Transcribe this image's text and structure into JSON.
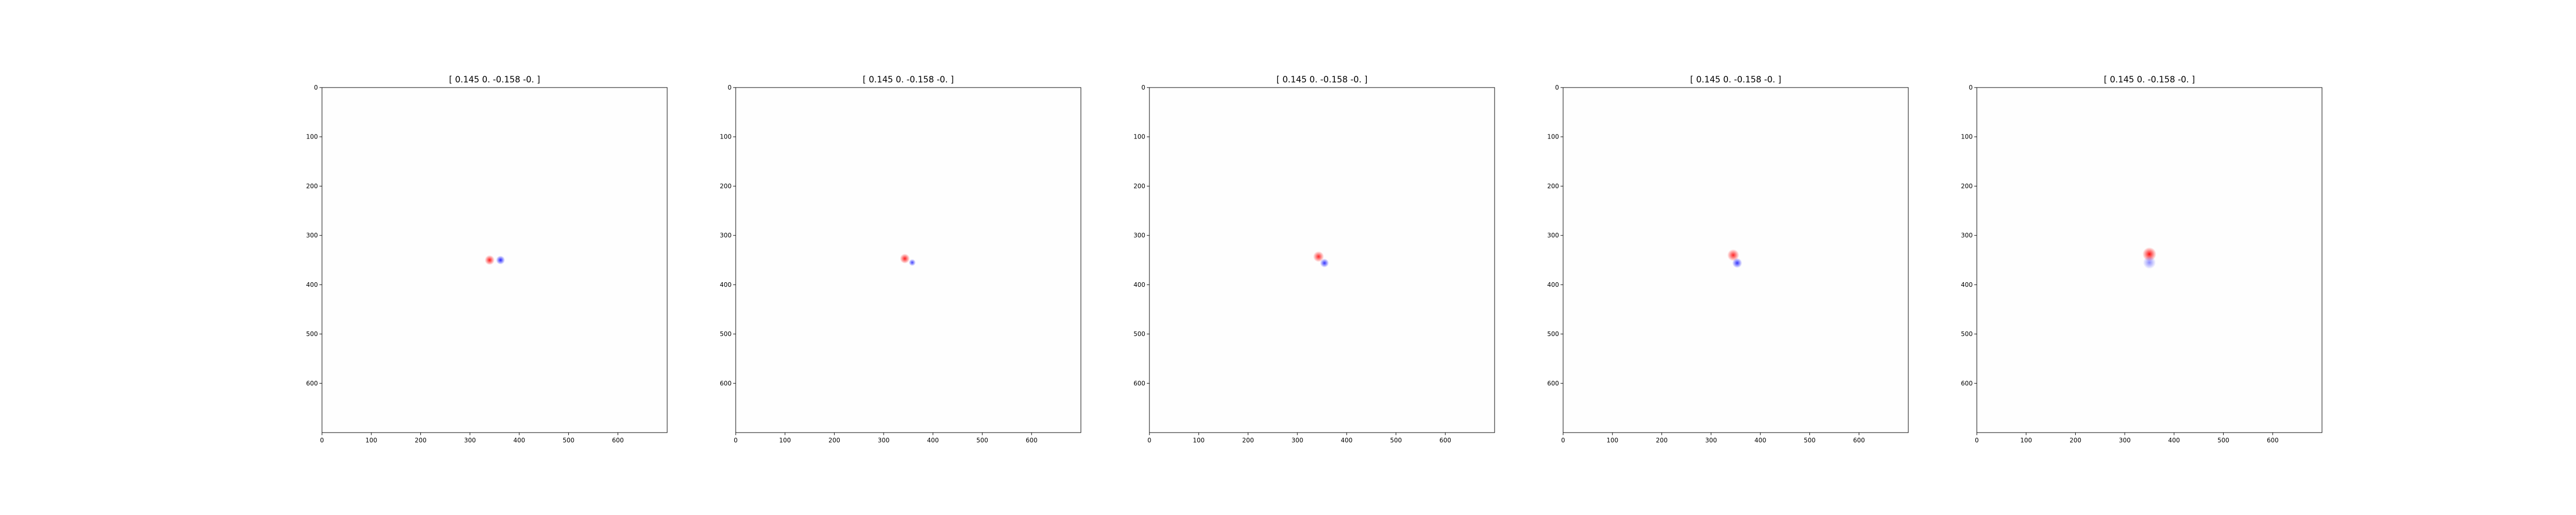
{
  "chart_data": [
    {
      "type": "heatmap",
      "title": "[ 0.145  0.    -0.158 -0.   ]",
      "xlabel": "",
      "ylabel": "",
      "xlim": [
        0,
        700
      ],
      "ylim": [
        700,
        0
      ],
      "x_ticks": [
        0,
        100,
        200,
        300,
        400,
        500,
        600
      ],
      "y_ticks": [
        0,
        100,
        200,
        300,
        400,
        500,
        600
      ],
      "colormap": "bwr",
      "colors": {
        "positive": "#ff0000",
        "negative": "#0000ff",
        "zero": "#fefefe"
      },
      "grid": false,
      "blobs": [
        {
          "x": 340,
          "y": 350,
          "r": 10,
          "sign": "positive",
          "intensity": 0.9
        },
        {
          "x": 362,
          "y": 350,
          "r": 9,
          "sign": "negative",
          "intensity": 0.85
        }
      ]
    },
    {
      "type": "heatmap",
      "title": "[ 0.145  0.    -0.158 -0.   ]",
      "xlabel": "",
      "ylabel": "",
      "xlim": [
        0,
        700
      ],
      "ylim": [
        700,
        0
      ],
      "x_ticks": [
        0,
        100,
        200,
        300,
        400,
        500,
        600
      ],
      "y_ticks": [
        0,
        100,
        200,
        300,
        400,
        500,
        600
      ],
      "colormap": "bwr",
      "colors": {
        "positive": "#ff0000",
        "negative": "#0000ff",
        "zero": "#fefefe"
      },
      "grid": false,
      "blobs": [
        {
          "x": 343,
          "y": 347,
          "r": 10,
          "sign": "positive",
          "intensity": 0.9
        },
        {
          "x": 358,
          "y": 355,
          "r": 7,
          "sign": "negative",
          "intensity": 0.75
        }
      ]
    },
    {
      "type": "heatmap",
      "title": "[ 0.145  0.    -0.158 -0.   ]",
      "xlabel": "",
      "ylabel": "",
      "xlim": [
        0,
        700
      ],
      "ylim": [
        700,
        0
      ],
      "x_ticks": [
        0,
        100,
        200,
        300,
        400,
        500,
        600
      ],
      "y_ticks": [
        0,
        100,
        200,
        300,
        400,
        500,
        600
      ],
      "colormap": "bwr",
      "colors": {
        "positive": "#ff0000",
        "negative": "#0000ff",
        "zero": "#fefefe"
      },
      "grid": false,
      "blobs": [
        {
          "x": 343,
          "y": 343,
          "r": 11,
          "sign": "positive",
          "intensity": 0.85
        },
        {
          "x": 355,
          "y": 356,
          "r": 9,
          "sign": "negative",
          "intensity": 0.8
        }
      ]
    },
    {
      "type": "heatmap",
      "title": "[ 0.145  0.    -0.158 -0.   ]",
      "xlabel": "",
      "ylabel": "",
      "xlim": [
        0,
        700
      ],
      "ylim": [
        700,
        0
      ],
      "x_ticks": [
        0,
        100,
        200,
        300,
        400,
        500,
        600
      ],
      "y_ticks": [
        0,
        100,
        200,
        300,
        400,
        500,
        600
      ],
      "colormap": "bwr",
      "colors": {
        "positive": "#ff0000",
        "negative": "#0000ff",
        "zero": "#fefefe"
      },
      "grid": false,
      "blobs": [
        {
          "x": 345,
          "y": 340,
          "r": 12,
          "sign": "positive",
          "intensity": 0.85
        },
        {
          "x": 353,
          "y": 356,
          "r": 10,
          "sign": "negative",
          "intensity": 0.8
        }
      ]
    },
    {
      "type": "heatmap",
      "title": "[ 0.145  0.    -0.158 -0.   ]",
      "xlabel": "",
      "ylabel": "",
      "xlim": [
        0,
        700
      ],
      "ylim": [
        700,
        0
      ],
      "x_ticks": [
        0,
        100,
        200,
        300,
        400,
        500,
        600
      ],
      "y_ticks": [
        0,
        100,
        200,
        300,
        400,
        500,
        600
      ],
      "colormap": "bwr",
      "colors": {
        "positive": "#ff0000",
        "negative": "#0000ff",
        "zero": "#fefefe"
      },
      "grid": false,
      "blobs": [
        {
          "x": 350,
          "y": 338,
          "r": 14,
          "sign": "positive",
          "intensity": 0.95
        },
        {
          "x": 350,
          "y": 355,
          "r": 13,
          "sign": "negative",
          "intensity": 0.45
        }
      ]
    }
  ]
}
